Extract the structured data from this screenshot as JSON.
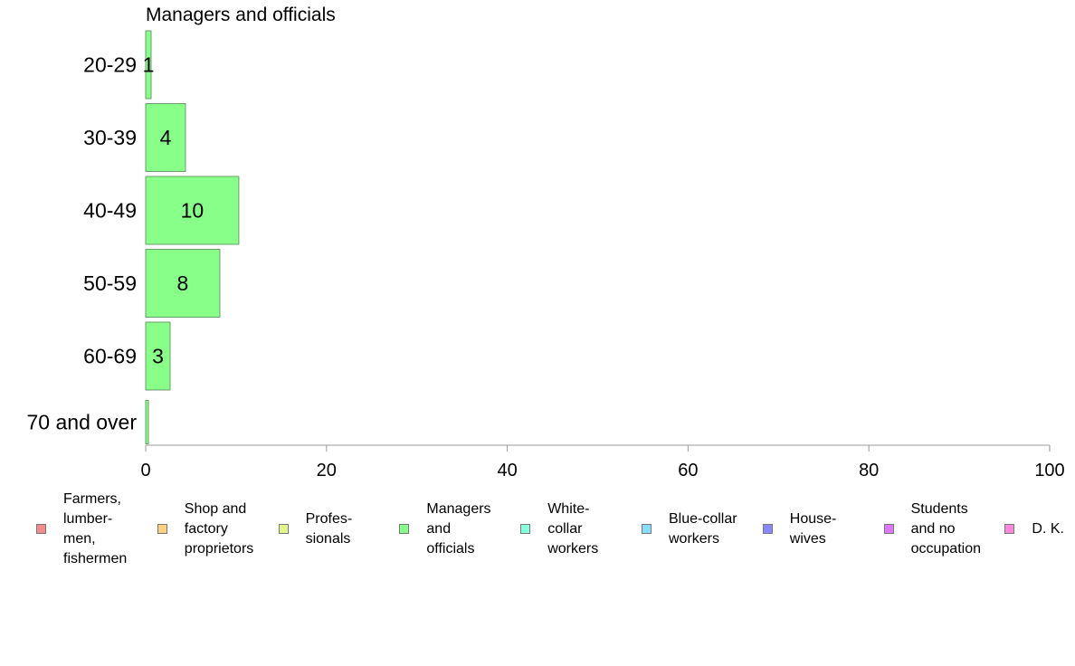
{
  "chart_data": {
    "type": "bar",
    "orientation": "horizontal",
    "title": "Managers and officials",
    "categories": [
      "20-29",
      "30-39",
      "40-49",
      "50-59",
      "60-69",
      "70 and over"
    ],
    "series": [
      {
        "name": "Managers and officials",
        "values": [
          0.6,
          4.4,
          10.3,
          8.2,
          2.7,
          0.3
        ],
        "labels": [
          "1",
          "4",
          "10",
          "8",
          "3",
          ""
        ],
        "color": "#88ff88"
      }
    ],
    "xlim": [
      0,
      100
    ],
    "xticks": [
      "0",
      "20",
      "40",
      "60",
      "80",
      "100"
    ],
    "grid": false,
    "legend_position": "bottom",
    "legend": [
      {
        "label": "Farmers,\nlumber-\nmen,\nfishermen",
        "color": "#f28b8b"
      },
      {
        "label": "Shop and\nfactory\nproprietors",
        "color": "#ffd080"
      },
      {
        "label": "Profes-\nsionals",
        "color": "#e2f58c"
      },
      {
        "label": "Managers\nand\nofficials",
        "color": "#88ff88"
      },
      {
        "label": "White-\ncollar\nworkers",
        "color": "#88ffdd"
      },
      {
        "label": "Blue-collar\nworkers",
        "color": "#88ddff"
      },
      {
        "label": "House-\nwives",
        "color": "#8888ff"
      },
      {
        "label": "Students\nand no\noccupation",
        "color": "#dd77ff"
      },
      {
        "label": "D. K.",
        "color": "#ff88dd"
      }
    ]
  }
}
